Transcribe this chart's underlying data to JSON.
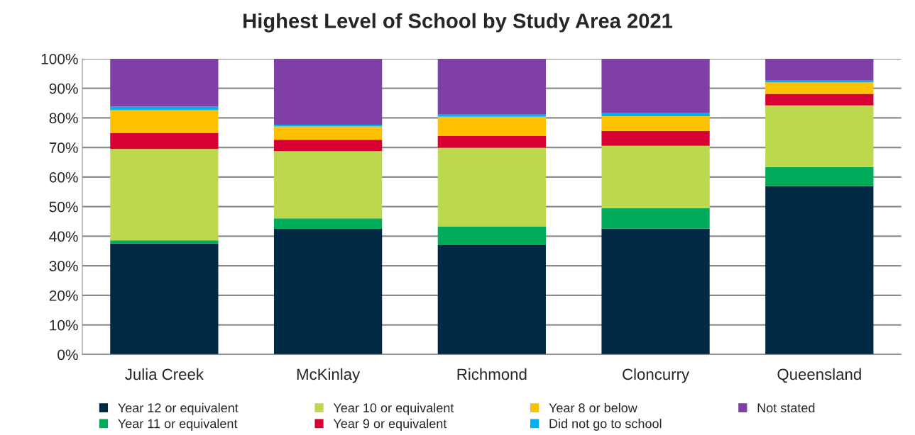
{
  "chart_data": {
    "type": "bar",
    "title": "Highest Level of School by Study Area 2021",
    "stacked": true,
    "categories": [
      "Julia Creek",
      "McKinlay",
      "Richmond",
      "Cloncurry",
      "Queensland"
    ],
    "series": [
      {
        "name": "Year 12 or equivalent",
        "color": "#022a44",
        "values": [
          37.5,
          42.5,
          37.0,
          42.6,
          57.0
        ]
      },
      {
        "name": "Year 11 or equivalent",
        "color": "#00ac5a",
        "values": [
          1.1,
          3.5,
          6.3,
          6.9,
          6.4
        ]
      },
      {
        "name": "Year 10 or equivalent",
        "color": "#bcd84c",
        "values": [
          30.9,
          22.8,
          26.6,
          21.1,
          20.8
        ]
      },
      {
        "name": "Year 9 or equivalent",
        "color": "#d60032",
        "values": [
          5.3,
          3.8,
          4.0,
          5.0,
          3.9
        ]
      },
      {
        "name": "Year 8 or below",
        "color": "#ffc000",
        "values": [
          7.8,
          4.5,
          6.5,
          5.0,
          3.9
        ]
      },
      {
        "name": "Did not go to school",
        "color": "#00b0f0",
        "values": [
          1.2,
          0.6,
          0.7,
          1.0,
          0.6
        ]
      },
      {
        "name": "Not stated",
        "color": "#7f3fa6",
        "values": [
          16.2,
          22.3,
          18.9,
          18.4,
          7.4
        ]
      }
    ],
    "ylim": [
      0,
      100
    ],
    "yticks": [
      {
        "value": 0,
        "label": "0%"
      },
      {
        "value": 10,
        "label": "10%"
      },
      {
        "value": 20,
        "label": "20%"
      },
      {
        "value": 30,
        "label": "30%"
      },
      {
        "value": 40,
        "label": "40%"
      },
      {
        "value": 50,
        "label": "50%"
      },
      {
        "value": 60,
        "label": "60%"
      },
      {
        "value": 70,
        "label": "70%"
      },
      {
        "value": 80,
        "label": "80%"
      },
      {
        "value": 90,
        "label": "90%"
      },
      {
        "value": 100,
        "label": "100%"
      }
    ],
    "grid": "y",
    "legend": "bottom"
  }
}
